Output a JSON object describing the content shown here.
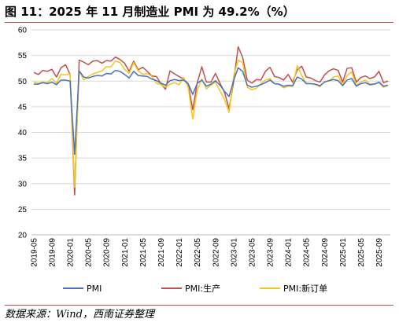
{
  "figure": {
    "title": "图 11：2025 年 11 月制造业 PMI 为 49.2%（%）",
    "source": "数据来源：Wind，西南证券整理"
  },
  "colors": {
    "rule": "#c0504d",
    "grid": "#d9d9d9"
  },
  "chart_data": {
    "type": "line",
    "title": "",
    "xlabel": "",
    "ylabel": "",
    "ylim": [
      20,
      60
    ],
    "yticks": [
      "60",
      "55",
      "50",
      "45",
      "40",
      "35",
      "30",
      "25",
      "20"
    ],
    "xticks": [
      "2019-05",
      "2019-09",
      "2020-01",
      "2020-05",
      "2020-09",
      "2021-01",
      "2021-05",
      "2021-09",
      "2022-01",
      "2022-05",
      "2022-09",
      "2023-01",
      "2023-05",
      "2023-09",
      "2024-01",
      "2024-05",
      "2024-09",
      "2025-01",
      "2025-05",
      "2025-09"
    ],
    "grid": "horizontal",
    "legend": "bottom",
    "x": [
      "2019-05",
      "2019-06",
      "2019-07",
      "2019-08",
      "2019-09",
      "2019-10",
      "2019-11",
      "2019-12",
      "2020-01",
      "2020-02",
      "2020-03",
      "2020-04",
      "2020-05",
      "2020-06",
      "2020-07",
      "2020-08",
      "2020-09",
      "2020-10",
      "2020-11",
      "2020-12",
      "2021-01",
      "2021-02",
      "2021-03",
      "2021-04",
      "2021-05",
      "2021-06",
      "2021-07",
      "2021-08",
      "2021-09",
      "2021-10",
      "2021-11",
      "2021-12",
      "2022-01",
      "2022-02",
      "2022-03",
      "2022-04",
      "2022-05",
      "2022-06",
      "2022-07",
      "2022-08",
      "2022-09",
      "2022-10",
      "2022-11",
      "2022-12",
      "2023-01",
      "2023-02",
      "2023-03",
      "2023-04",
      "2023-05",
      "2023-06",
      "2023-07",
      "2023-08",
      "2023-09",
      "2023-10",
      "2023-11",
      "2023-12",
      "2024-01",
      "2024-02",
      "2024-03",
      "2024-04",
      "2024-05",
      "2024-06",
      "2024-07",
      "2024-08",
      "2024-09",
      "2024-10",
      "2024-11",
      "2024-12",
      "2025-01",
      "2025-02",
      "2025-03",
      "2025-04",
      "2025-05",
      "2025-06",
      "2025-07",
      "2025-08",
      "2025-09",
      "2025-10",
      "2025-11"
    ],
    "series": [
      {
        "name": "PMI",
        "color": "#4472c4",
        "values": [
          49.4,
          49.4,
          49.7,
          49.5,
          49.8,
          49.3,
          50.2,
          50.2,
          50.0,
          35.7,
          52.0,
          50.8,
          50.6,
          50.9,
          51.1,
          51.0,
          51.5,
          51.4,
          52.1,
          51.9,
          51.3,
          50.6,
          51.9,
          51.1,
          51.0,
          50.9,
          50.4,
          50.1,
          49.6,
          49.2,
          50.1,
          50.3,
          50.1,
          50.2,
          49.5,
          47.4,
          49.6,
          50.2,
          49.0,
          49.4,
          50.1,
          49.2,
          48.0,
          47.0,
          50.1,
          52.6,
          51.9,
          49.2,
          48.8,
          49.0,
          49.3,
          49.7,
          50.2,
          49.5,
          49.4,
          49.0,
          49.2,
          49.1,
          50.8,
          50.4,
          49.5,
          49.5,
          49.4,
          49.1,
          49.8,
          50.1,
          50.3,
          50.1,
          49.1,
          50.2,
          50.5,
          49.0,
          49.5,
          49.7,
          49.3,
          49.4,
          49.8,
          49.0,
          49.2
        ]
      },
      {
        "name": "PMI:生产",
        "color": "#c0504d",
        "values": [
          51.7,
          51.3,
          52.1,
          51.9,
          52.3,
          50.8,
          52.6,
          53.2,
          51.3,
          27.8,
          54.1,
          53.7,
          53.2,
          53.9,
          54.0,
          53.5,
          54.0,
          53.9,
          54.7,
          54.2,
          53.5,
          51.9,
          53.9,
          52.2,
          52.7,
          51.9,
          51.0,
          50.9,
          49.5,
          48.4,
          52.0,
          51.4,
          50.9,
          50.4,
          49.5,
          44.4,
          49.7,
          52.8,
          49.8,
          49.8,
          51.5,
          49.6,
          47.8,
          44.6,
          49.8,
          56.7,
          54.6,
          50.2,
          49.6,
          50.3,
          50.2,
          51.9,
          52.7,
          50.9,
          50.7,
          50.2,
          51.3,
          49.8,
          52.2,
          52.9,
          50.8,
          50.6,
          50.1,
          49.8,
          51.2,
          52.0,
          52.4,
          52.1,
          49.8,
          52.5,
          52.6,
          49.8,
          50.7,
          51.0,
          50.5,
          50.8,
          51.9,
          49.7,
          50.0
        ]
      },
      {
        "name": "PMI:新订单",
        "color": "#f5c518",
        "values": [
          49.8,
          49.6,
          49.8,
          49.7,
          50.5,
          49.6,
          51.3,
          51.2,
          51.4,
          29.3,
          52.0,
          50.2,
          50.9,
          51.4,
          51.7,
          52.0,
          52.8,
          52.8,
          53.9,
          53.6,
          52.3,
          51.5,
          53.6,
          52.0,
          51.3,
          51.5,
          50.9,
          49.6,
          49.3,
          48.8,
          49.4,
          49.7,
          49.3,
          50.7,
          48.8,
          42.6,
          48.2,
          50.4,
          48.5,
          49.2,
          49.8,
          48.1,
          46.4,
          43.9,
          50.9,
          54.1,
          53.6,
          48.8,
          48.3,
          48.6,
          49.5,
          50.2,
          50.5,
          49.5,
          49.4,
          48.7,
          49.0,
          49.0,
          53.0,
          51.1,
          49.6,
          49.5,
          49.3,
          48.9,
          49.9,
          50.0,
          50.8,
          51.0,
          49.2,
          51.1,
          51.8,
          49.2,
          49.8,
          50.2,
          49.4,
          49.5,
          49.7,
          48.8,
          49.2
        ]
      }
    ]
  }
}
